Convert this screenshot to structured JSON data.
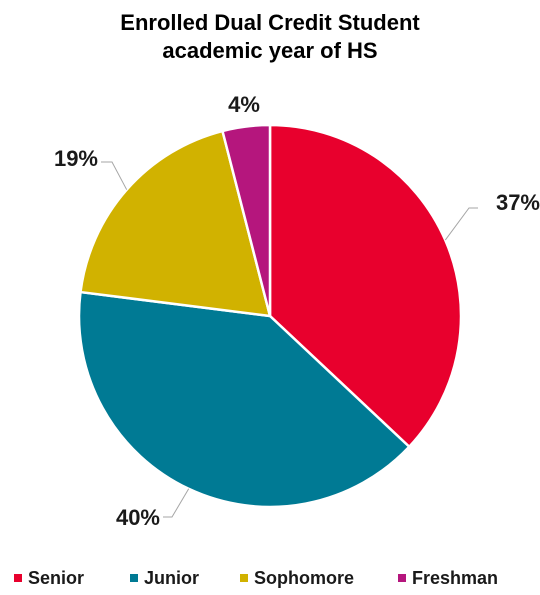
{
  "chart_data": {
    "type": "pie",
    "title": [
      "Enrolled Dual Credit Student",
      "academic year of HS"
    ],
    "legend_position": "bottom",
    "slices": [
      {
        "name": "Senior",
        "value": 37,
        "label": "37%",
        "color": "#e8002d"
      },
      {
        "name": "Junior",
        "value": 40,
        "label": "40%",
        "color": "#007a94"
      },
      {
        "name": "Sophomore",
        "value": 19,
        "label": "19%",
        "color": "#d1b200"
      },
      {
        "name": "Freshman",
        "value": 4,
        "label": "4%",
        "color": "#b5167d"
      }
    ]
  }
}
